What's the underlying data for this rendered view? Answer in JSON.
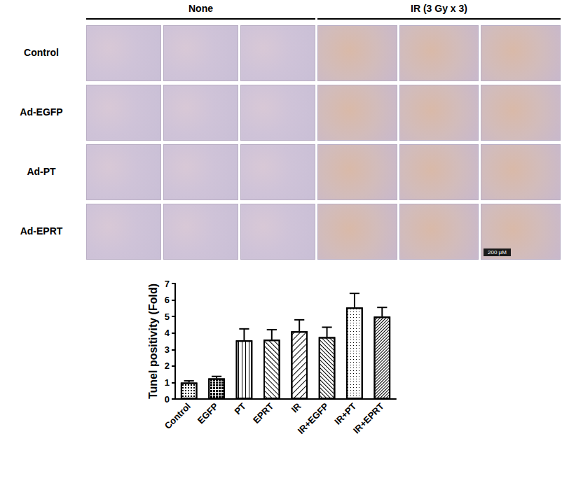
{
  "figure": {
    "column_headers": [
      "None",
      "IR (3 Gy x 3)"
    ],
    "row_labels": [
      "Control",
      "Ad-EGFP",
      "Ad-PT",
      "Ad-EPRT"
    ],
    "scale_bar": "200 μM"
  },
  "chart_data": {
    "type": "bar",
    "y_label": "Tunel positivity (Fold)",
    "categories": [
      "Control",
      "EGFP",
      "PT",
      "EPRT",
      "IR",
      "IR+EGFP",
      "IR+PT",
      "IR+EPRT"
    ],
    "values": [
      1.0,
      1.25,
      3.55,
      3.6,
      4.1,
      3.75,
      5.55,
      5.0
    ],
    "errors": [
      0.1,
      0.12,
      0.7,
      0.6,
      0.7,
      0.6,
      0.85,
      0.55
    ],
    "color": "#ffffff",
    "ylim": [
      0,
      7
    ],
    "yticks": [
      0,
      1,
      2,
      3,
      4,
      5,
      6,
      7
    ],
    "grid": false
  }
}
